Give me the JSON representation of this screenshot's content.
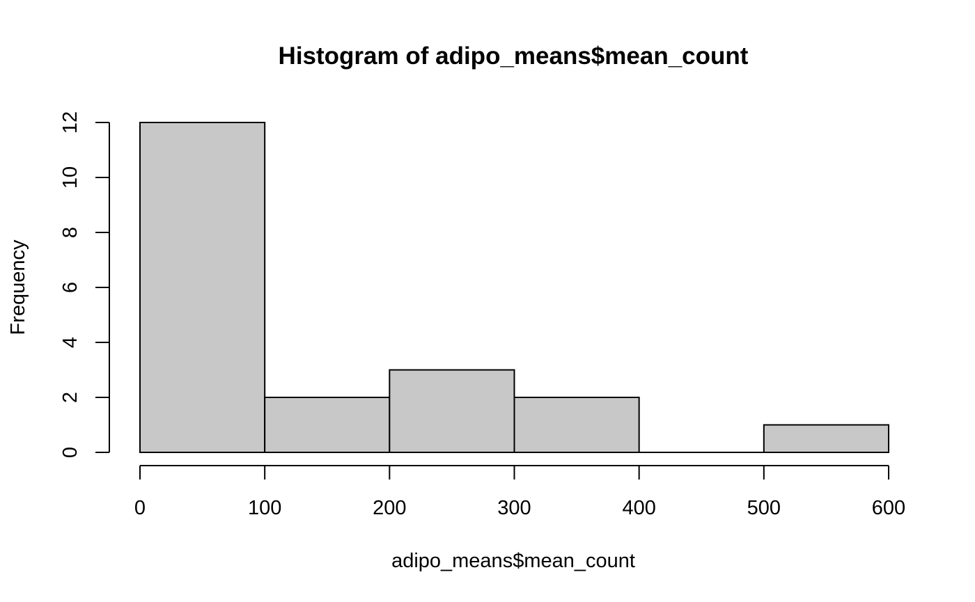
{
  "chart_data": {
    "type": "bar",
    "subtype": "histogram",
    "title": "Histogram of adipo_means$mean_count",
    "xlabel": "adipo_means$mean_count",
    "ylabel": "Frequency",
    "bins": [
      {
        "from": 0,
        "to": 100,
        "count": 12
      },
      {
        "from": 100,
        "to": 200,
        "count": 2
      },
      {
        "from": 200,
        "to": 300,
        "count": 3
      },
      {
        "from": 300,
        "to": 400,
        "count": 2
      },
      {
        "from": 400,
        "to": 500,
        "count": 0
      },
      {
        "from": 500,
        "to": 600,
        "count": 1
      }
    ],
    "xlim": [
      0,
      600
    ],
    "ylim": [
      0,
      12
    ],
    "x_ticks": [
      0,
      100,
      200,
      300,
      400,
      500,
      600
    ],
    "y_ticks": [
      0,
      2,
      4,
      6,
      8,
      10,
      12
    ],
    "bar_color": "#c8c8c8",
    "grid": false
  }
}
